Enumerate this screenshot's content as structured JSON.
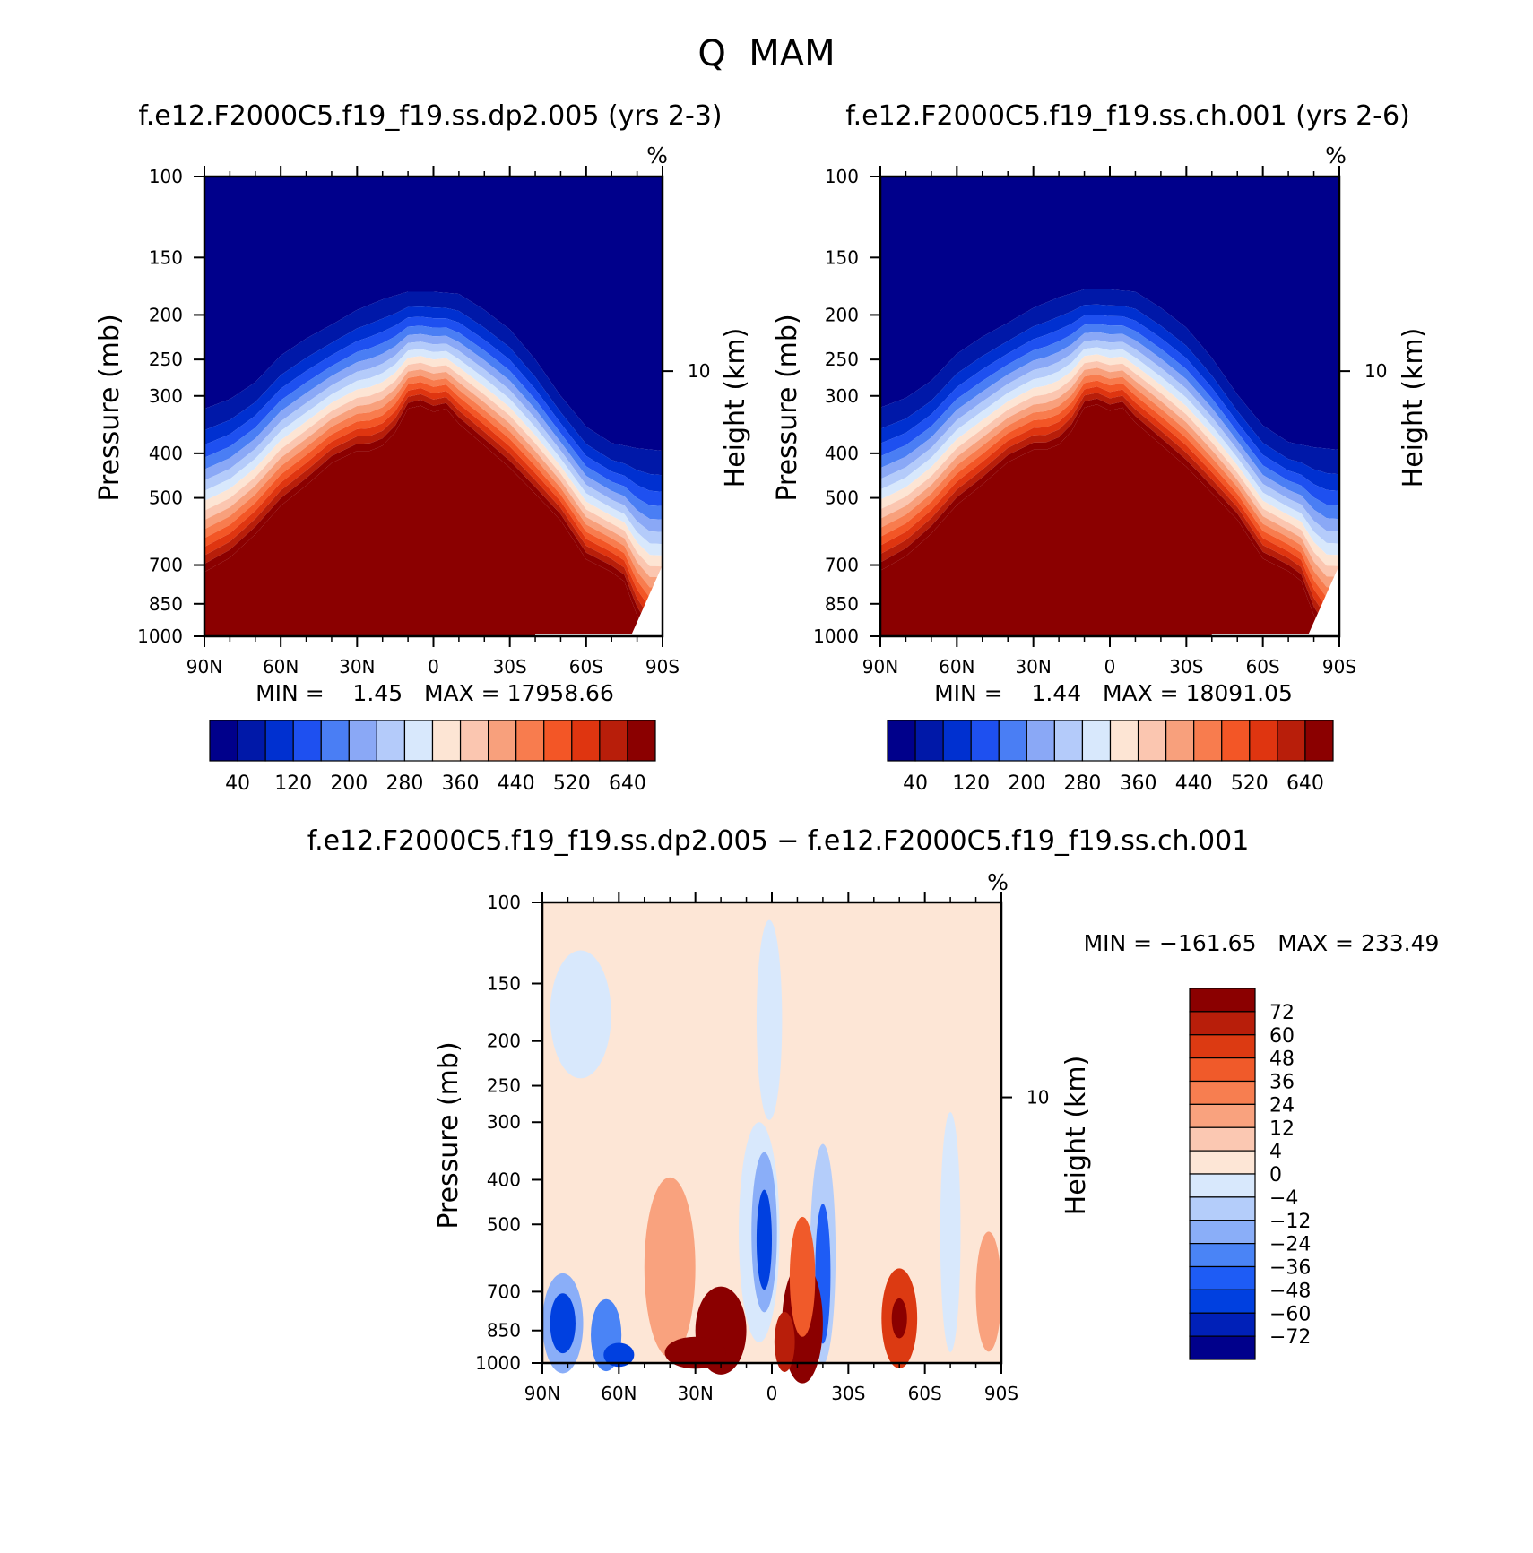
{
  "figure_title": "Q  MAM",
  "diff_title": "f.e12.F2000C5.f19_f19.ss.dp2.005 − f.e12.F2000C5.f19_f19.ss.ch.001",
  "abs_colors": [
    "#00008b",
    "#0018a8",
    "#0030d0",
    "#1e50f0",
    "#4a7ef4",
    "#8aa8f6",
    "#b4cbfa",
    "#d8e8fc",
    "#fde5d4",
    "#fbc6b0",
    "#f8a07c",
    "#f87c4e",
    "#f35626",
    "#df3510",
    "#b81e0a",
    "#8b0000"
  ],
  "diff_colors": [
    "#00008b",
    "#0020b8",
    "#0040e0",
    "#1e5cf5",
    "#4a84f6",
    "#8aaef8",
    "#b4cdfa",
    "#d8e8fc",
    "#fde6d6",
    "#fbc8b2",
    "#f9a27e",
    "#f77e50",
    "#f05a2a",
    "#dc3a12",
    "#b81e0a",
    "#8b0000"
  ],
  "chart_data": [
    {
      "type": "contour",
      "title": "f.e12.F2000C5.f19_f19.ss.dp2.005 (yrs 2-3)",
      "units": "%",
      "xlabel": "",
      "ylabel": "Pressure (mb)",
      "ylabel_right": "Height (km)",
      "x_ticks": [
        "90N",
        "60N",
        "30N",
        "0",
        "30S",
        "60S",
        "90S"
      ],
      "y_ticks": [
        "100",
        "150",
        "200",
        "250",
        "300",
        "400",
        "500",
        "700",
        "850",
        "1000"
      ],
      "y_ticks_right": [
        "10"
      ],
      "min_max": "MIN =    1.45   MAX = 17958.66",
      "colorbar_labels": [
        "40",
        "120",
        "200",
        "280",
        "360",
        "440",
        "520",
        "640"
      ],
      "saturation_boundary_mb": [
        [
          90,
          725
        ],
        [
          80,
          675
        ],
        [
          70,
          600
        ],
        [
          60,
          520
        ],
        [
          50,
          470
        ],
        [
          40,
          420
        ],
        [
          30,
          395
        ],
        [
          25,
          395
        ],
        [
          20,
          385
        ],
        [
          15,
          360
        ],
        [
          10,
          320
        ],
        [
          5,
          315
        ],
        [
          0,
          325
        ],
        [
          -5,
          320
        ],
        [
          -10,
          345
        ],
        [
          -20,
          385
        ],
        [
          -30,
          430
        ],
        [
          -40,
          490
        ],
        [
          -50,
          560
        ],
        [
          -60,
          680
        ],
        [
          -70,
          725
        ],
        [
          -75,
          760
        ],
        [
          -80,
          900
        ],
        [
          -85,
          1000
        ]
      ],
      "low_level_boundary_mb": [
        [
          90,
          320
        ],
        [
          80,
          305
        ],
        [
          70,
          280
        ],
        [
          60,
          245
        ],
        [
          50,
          225
        ],
        [
          40,
          210
        ],
        [
          30,
          195
        ],
        [
          20,
          185
        ],
        [
          10,
          178
        ],
        [
          0,
          178
        ],
        [
          -10,
          180
        ],
        [
          -20,
          195
        ],
        [
          -30,
          215
        ],
        [
          -40,
          250
        ],
        [
          -50,
          300
        ],
        [
          -60,
          350
        ],
        [
          -70,
          380
        ],
        [
          -80,
          390
        ],
        [
          -90,
          395
        ]
      ]
    },
    {
      "type": "contour",
      "title": "f.e12.F2000C5.f19_f19.ss.ch.001 (yrs 2-6)",
      "units": "%",
      "xlabel": "",
      "ylabel": "Pressure (mb)",
      "ylabel_right": "Height (km)",
      "x_ticks": [
        "90N",
        "60N",
        "30N",
        "0",
        "30S",
        "60S",
        "90S"
      ],
      "y_ticks": [
        "100",
        "150",
        "200",
        "250",
        "300",
        "400",
        "500",
        "700",
        "850",
        "1000"
      ],
      "y_ticks_right": [
        "10"
      ],
      "min_max": "MIN =    1.44   MAX = 18091.05",
      "colorbar_labels": [
        "40",
        "120",
        "200",
        "280",
        "360",
        "440",
        "520",
        "640"
      ],
      "saturation_boundary_mb": [
        [
          90,
          720
        ],
        [
          80,
          670
        ],
        [
          70,
          598
        ],
        [
          60,
          518
        ],
        [
          50,
          468
        ],
        [
          40,
          418
        ],
        [
          30,
          393
        ],
        [
          25,
          393
        ],
        [
          20,
          383
        ],
        [
          15,
          358
        ],
        [
          10,
          318
        ],
        [
          5,
          313
        ],
        [
          0,
          323
        ],
        [
          -5,
          318
        ],
        [
          -10,
          343
        ],
        [
          -20,
          383
        ],
        [
          -30,
          428
        ],
        [
          -40,
          488
        ],
        [
          -50,
          558
        ],
        [
          -60,
          678
        ],
        [
          -70,
          722
        ],
        [
          -75,
          758
        ],
        [
          -80,
          900
        ],
        [
          -85,
          1000
        ]
      ],
      "low_level_boundary_mb": [
        [
          90,
          318
        ],
        [
          80,
          303
        ],
        [
          70,
          278
        ],
        [
          60,
          243
        ],
        [
          50,
          223
        ],
        [
          40,
          208
        ],
        [
          30,
          193
        ],
        [
          20,
          183
        ],
        [
          10,
          176
        ],
        [
          0,
          176
        ],
        [
          -10,
          178
        ],
        [
          -20,
          193
        ],
        [
          -30,
          213
        ],
        [
          -40,
          248
        ],
        [
          -50,
          298
        ],
        [
          -60,
          348
        ],
        [
          -70,
          378
        ],
        [
          -80,
          388
        ],
        [
          -90,
          393
        ]
      ]
    },
    {
      "type": "contour",
      "title": "f.e12.F2000C5.f19_f19.ss.dp2.005 − f.e12.F2000C5.f19_f19.ss.ch.001",
      "units": "%",
      "xlabel": "",
      "ylabel": "Pressure (mb)",
      "ylabel_right": "Height (km)",
      "x_ticks": [
        "90N",
        "60N",
        "30N",
        "0",
        "30S",
        "60S",
        "90S"
      ],
      "y_ticks": [
        "100",
        "150",
        "200",
        "250",
        "300",
        "400",
        "500",
        "700",
        "850",
        "1000"
      ],
      "y_ticks_right": [
        "10"
      ],
      "min_max": "MIN = −161.65   MAX = 233.49",
      "colorbar_labels": [
        "72",
        "60",
        "48",
        "36",
        "24",
        "12",
        "4",
        "0",
        "−4",
        "−12",
        "−24",
        "−36",
        "−48",
        "−60",
        "−72"
      ],
      "background_class": 8,
      "blobs": [
        {
          "lat": 75,
          "p": 175,
          "rlat": 12,
          "rp": 0.32,
          "cls": 7
        },
        {
          "lat": 1,
          "p": 180,
          "rlat": 5,
          "rp": 0.5,
          "cls": 7
        },
        {
          "lat": 5,
          "p": 520,
          "rlat": 8,
          "rp": 0.55,
          "cls": 7
        },
        {
          "lat": 3,
          "p": 520,
          "rlat": 5,
          "rp": 0.4,
          "cls": 5
        },
        {
          "lat": 3,
          "p": 540,
          "rlat": 3,
          "rp": 0.25,
          "cls": 2
        },
        {
          "lat": -20,
          "p": 580,
          "rlat": 5,
          "rp": 0.55,
          "cls": 6
        },
        {
          "lat": -20,
          "p": 640,
          "rlat": 3,
          "rp": 0.35,
          "cls": 3
        },
        {
          "lat": -70,
          "p": 520,
          "rlat": 4,
          "rp": 0.6,
          "cls": 7
        },
        {
          "lat": 82,
          "p": 820,
          "rlat": 8,
          "rp": 0.25,
          "cls": 5
        },
        {
          "lat": 82,
          "p": 820,
          "rlat": 5,
          "rp": 0.15,
          "cls": 2
        },
        {
          "lat": 65,
          "p": 870,
          "rlat": 6,
          "rp": 0.18,
          "cls": 4
        },
        {
          "lat": 60,
          "p": 960,
          "rlat": 6,
          "rp": 0.06,
          "cls": 2
        },
        {
          "lat": 40,
          "p": 620,
          "rlat": 10,
          "rp": 0.45,
          "cls": 10
        },
        {
          "lat": 20,
          "p": 850,
          "rlat": 10,
          "rp": 0.22,
          "cls": 15
        },
        {
          "lat": 30,
          "p": 950,
          "rlat": 12,
          "rp": 0.08,
          "cls": 15
        },
        {
          "lat": -12,
          "p": 820,
          "rlat": 8,
          "rp": 0.3,
          "cls": 15
        },
        {
          "lat": -12,
          "p": 650,
          "rlat": 5,
          "rp": 0.3,
          "cls": 12
        },
        {
          "lat": -5,
          "p": 900,
          "rlat": 4,
          "rp": 0.15,
          "cls": 14
        },
        {
          "lat": -50,
          "p": 800,
          "rlat": 7,
          "rp": 0.25,
          "cls": 13
        },
        {
          "lat": -50,
          "p": 800,
          "rlat": 3,
          "rp": 0.1,
          "cls": 15
        },
        {
          "lat": -85,
          "p": 700,
          "rlat": 5,
          "rp": 0.3,
          "cls": 10
        }
      ]
    }
  ]
}
